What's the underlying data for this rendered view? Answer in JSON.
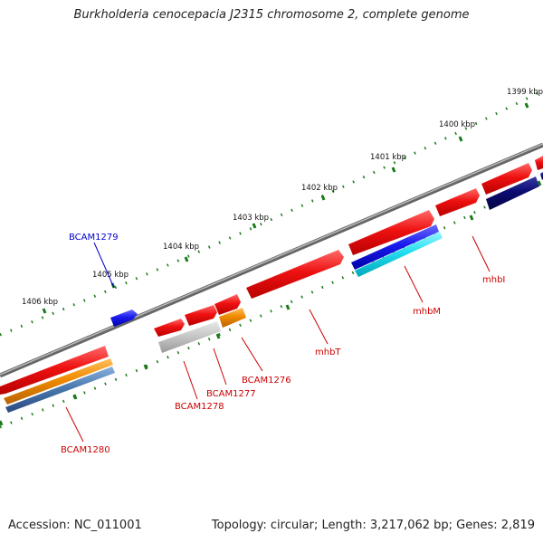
{
  "title": "Burkholderia cenocepacia J2315 chromosome 2, complete genome",
  "footer": {
    "accession": "Accession: NC_011001",
    "summary": "Topology: circular; Length: 3,217,062 bp; Genes: 2,819"
  },
  "colors": {
    "gene_red": "#ee1111",
    "gene_blue": "#1a1aee",
    "gene_navy": "#0b0b72",
    "gene_orange": "#f08a00",
    "gene_grey": "#c8c8c8",
    "gene_steel": "#4a7ab0",
    "gene_cyan": "#22ddee",
    "tick_green": "#1a7a1a",
    "backbone": "#777777",
    "label_red": "#cc0000",
    "label_blue": "#0000cc"
  },
  "scale_ticks": [
    {
      "label": "1399 kbp"
    },
    {
      "label": "1400 kbp"
    },
    {
      "label": "1401 kbp"
    },
    {
      "label": "1402 kbp"
    },
    {
      "label": "1403 kbp"
    },
    {
      "label": "1404 kbp"
    },
    {
      "label": "1405 kbp"
    },
    {
      "label": "1406 kbp"
    }
  ],
  "gene_labels": [
    {
      "name": "BCAM1279",
      "color": "blue"
    },
    {
      "name": "BCAM1280",
      "color": "red"
    },
    {
      "name": "BCAM1278",
      "color": "red"
    },
    {
      "name": "BCAM1277",
      "color": "red"
    },
    {
      "name": "BCAM1276",
      "color": "red"
    },
    {
      "name": "mhbT",
      "color": "red"
    },
    {
      "name": "mhbM",
      "color": "red"
    },
    {
      "name": "mhbI",
      "color": "red"
    }
  ]
}
